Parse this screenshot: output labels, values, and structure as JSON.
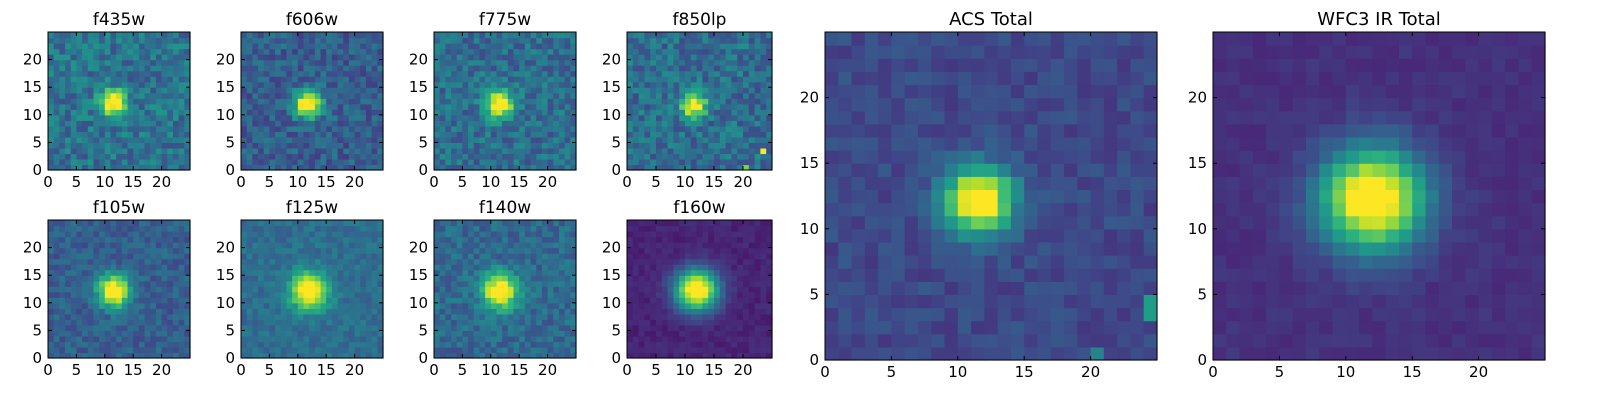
{
  "figure": {
    "background": "#ffffff",
    "colormap": "viridis",
    "colormap_stops": [
      "#440154",
      "#482878",
      "#3e4a89",
      "#31688e",
      "#26828e",
      "#1f9e89",
      "#35b779",
      "#6ece58",
      "#b5de2b",
      "#fde725"
    ]
  },
  "chart_data": [
    {
      "type": "heatmap",
      "title": "f435w",
      "xlim": [
        0,
        25
      ],
      "ylim": [
        0,
        25
      ],
      "x_ticks": [
        0,
        5,
        10,
        15,
        20
      ],
      "y_ticks": [
        0,
        5,
        10,
        15,
        20
      ],
      "source": {
        "center": [
          11.5,
          12.3
        ],
        "sigma": 1.6,
        "peak": 1.0
      },
      "noise": 0.28,
      "background": 0.38,
      "seed": 11
    },
    {
      "type": "heatmap",
      "title": "f606w",
      "xlim": [
        0,
        25
      ],
      "ylim": [
        0,
        25
      ],
      "x_ticks": [
        0,
        5,
        10,
        15,
        20
      ],
      "y_ticks": [
        0,
        5,
        10,
        15,
        20
      ],
      "source": {
        "center": [
          11.8,
          12.0
        ],
        "sigma": 1.7,
        "peak": 1.0
      },
      "noise": 0.24,
      "background": 0.3,
      "seed": 23
    },
    {
      "type": "heatmap",
      "title": "f775w",
      "xlim": [
        0,
        25
      ],
      "ylim": [
        0,
        25
      ],
      "x_ticks": [
        0,
        5,
        10,
        15,
        20
      ],
      "y_ticks": [
        0,
        5,
        10,
        15,
        20
      ],
      "source": {
        "center": [
          11.5,
          12.0
        ],
        "sigma": 1.7,
        "peak": 1.0
      },
      "noise": 0.26,
      "background": 0.36,
      "seed": 37
    },
    {
      "type": "heatmap",
      "title": "f850lp",
      "xlim": [
        0,
        25
      ],
      "ylim": [
        0,
        25
      ],
      "x_ticks": [
        0,
        5,
        10,
        15,
        20
      ],
      "y_ticks": [
        0,
        5,
        10,
        15,
        20
      ],
      "source": {
        "center": [
          11.5,
          11.8
        ],
        "sigma": 1.5,
        "peak": 0.95
      },
      "noise": 0.28,
      "background": 0.36,
      "seed": 53,
      "hot_pixels": [
        [
          23.5,
          3.5,
          1.0
        ],
        [
          20.5,
          0.5,
          0.8
        ]
      ]
    },
    {
      "type": "heatmap",
      "title": "f105w",
      "xlim": [
        0,
        25
      ],
      "ylim": [
        0,
        25
      ],
      "x_ticks": [
        0,
        5,
        10,
        15,
        20
      ],
      "y_ticks": [
        0,
        5,
        10,
        15,
        20
      ],
      "source": {
        "center": [
          11.6,
          12.2
        ],
        "sigma": 2.0,
        "peak": 1.0
      },
      "noise": 0.18,
      "background": 0.3,
      "seed": 71
    },
    {
      "type": "heatmap",
      "title": "f125w",
      "xlim": [
        0,
        25
      ],
      "ylim": [
        0,
        25
      ],
      "x_ticks": [
        0,
        5,
        10,
        15,
        20
      ],
      "y_ticks": [
        0,
        5,
        10,
        15,
        20
      ],
      "source": {
        "center": [
          12.0,
          12.2
        ],
        "sigma": 2.3,
        "peak": 1.0
      },
      "noise": 0.15,
      "background": 0.36,
      "seed": 89
    },
    {
      "type": "heatmap",
      "title": "f140w",
      "xlim": [
        0,
        25
      ],
      "ylim": [
        0,
        25
      ],
      "x_ticks": [
        0,
        5,
        10,
        15,
        20
      ],
      "y_ticks": [
        0,
        5,
        10,
        15,
        20
      ],
      "source": {
        "center": [
          11.6,
          12.2
        ],
        "sigma": 2.2,
        "peak": 1.0
      },
      "noise": 0.2,
      "background": 0.34,
      "seed": 97
    },
    {
      "type": "heatmap",
      "title": "f160w",
      "xlim": [
        0,
        25
      ],
      "ylim": [
        0,
        25
      ],
      "x_ticks": [
        0,
        5,
        10,
        15,
        20
      ],
      "y_ticks": [
        0,
        5,
        10,
        15,
        20
      ],
      "source": {
        "center": [
          12.0,
          12.4
        ],
        "sigma": 2.6,
        "peak": 1.0
      },
      "noise": 0.07,
      "background": 0.1,
      "seed": 103
    },
    {
      "type": "heatmap",
      "title": "ACS Total",
      "xlim": [
        0,
        25
      ],
      "ylim": [
        0,
        25
      ],
      "x_ticks": [
        0,
        5,
        10,
        15,
        20
      ],
      "y_ticks": [
        0,
        5,
        10,
        15,
        20
      ],
      "source": {
        "center": [
          11.6,
          12.2
        ],
        "sigma": 1.8,
        "peak": 1.0
      },
      "noise": 0.12,
      "background": 0.22,
      "seed": 131,
      "hot_pixels": [
        [
          24.5,
          3.5,
          0.55
        ],
        [
          24.5,
          4.5,
          0.55
        ],
        [
          20.5,
          0.5,
          0.45
        ]
      ]
    },
    {
      "type": "heatmap",
      "title": "WFC3 IR Total",
      "xlim": [
        0,
        25
      ],
      "ylim": [
        0,
        25
      ],
      "x_ticks": [
        0,
        5,
        10,
        15,
        20
      ],
      "y_ticks": [
        0,
        5,
        10,
        15,
        20
      ],
      "source": {
        "center": [
          12.0,
          12.3
        ],
        "sigma": 2.7,
        "peak": 1.0
      },
      "noise": 0.06,
      "background": 0.14,
      "seed": 151
    }
  ]
}
